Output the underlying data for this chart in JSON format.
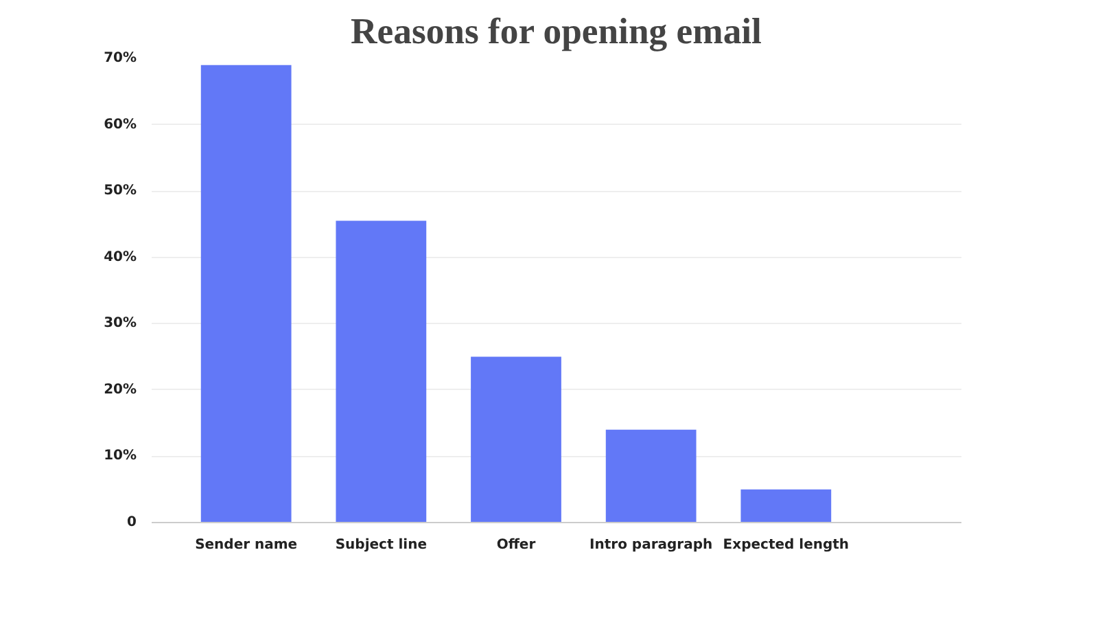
{
  "chart_data": {
    "type": "bar",
    "title": "Reasons for opening email",
    "categories": [
      "Sender name",
      "Subject line",
      "Offer",
      "Intro paragraph",
      "Expected length"
    ],
    "values": [
      69,
      45.5,
      25,
      14,
      5
    ],
    "color": "#6278f7",
    "ylim": [
      0,
      70
    ],
    "yticks": [
      {
        "value": 0,
        "label": "0"
      },
      {
        "value": 10,
        "label": "10%"
      },
      {
        "value": 20,
        "label": "20%"
      },
      {
        "value": 30,
        "label": "30%"
      },
      {
        "value": 40,
        "label": "40%"
      },
      {
        "value": 50,
        "label": "50%"
      },
      {
        "value": 60,
        "label": "60%"
      },
      {
        "value": 70,
        "label": "70%"
      }
    ],
    "grid": "y"
  }
}
